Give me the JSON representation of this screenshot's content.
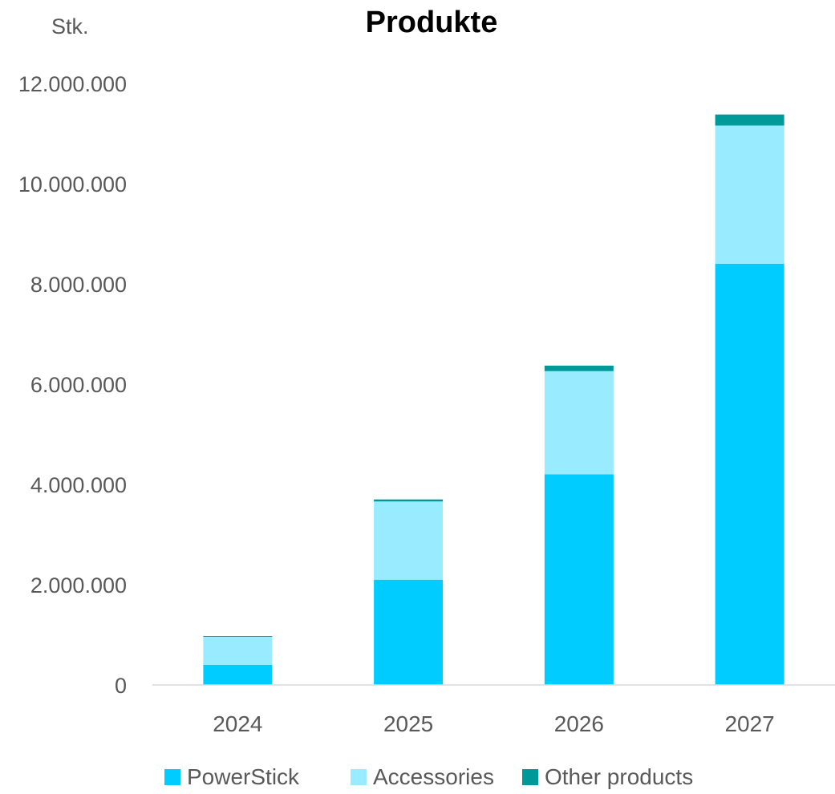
{
  "chart_data": {
    "type": "bar",
    "stacked": true,
    "title": "Produkte",
    "unit_label": "Stk.",
    "xlabel": "",
    "ylabel": "",
    "categories": [
      "2024",
      "2025",
      "2026",
      "2027"
    ],
    "series": [
      {
        "name": "PowerStick",
        "values": [
          400000,
          2100000,
          4200000,
          8400000
        ],
        "color": "#00CCFF"
      },
      {
        "name": "Accessories",
        "values": [
          560000,
          1560000,
          2060000,
          2760000
        ],
        "color": "#99EBFF"
      },
      {
        "name": "Other products",
        "values": [
          15000,
          40000,
          110000,
          220000
        ],
        "color": "#009999"
      }
    ],
    "ylim": [
      0,
      12000000
    ],
    "y_ticks": [
      0,
      2000000,
      4000000,
      6000000,
      8000000,
      10000000,
      12000000
    ],
    "y_tick_labels": [
      "0",
      "2.000.000",
      "4.000.000",
      "6.000.000",
      "8.000.000",
      "10.000.000",
      "12.000.000"
    ],
    "grid": false,
    "legend_position": "bottom",
    "axis_color": "#D9D9D9",
    "text_color": "#595959"
  }
}
